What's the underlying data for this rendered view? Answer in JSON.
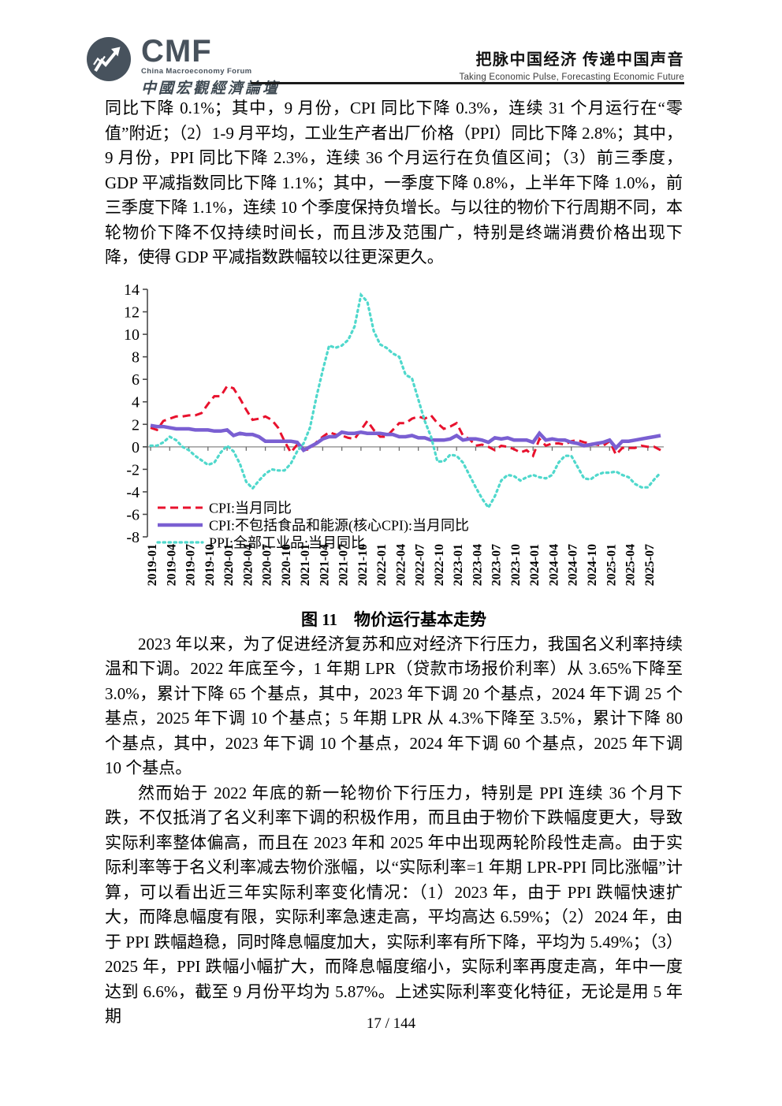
{
  "header": {
    "logo": {
      "abbr": "CMF",
      "full_name": "China Macroeconomy Forum",
      "calligraphy": "中國宏觀經濟論壇"
    },
    "slogan_cn": "把脉中国经济  传递中国声音",
    "slogan_en": "Taking Economic Pulse, Forecasting Economic Future"
  },
  "body": {
    "para1": "同比下降 0.1%；其中，9 月份，CPI 同比下降 0.3%，连续 31 个月运行在“零值”附近；（2）1-9 月平均，工业生产者出厂价格（PPI）同比下降 2.8%；其中，9 月份，PPI 同比下降 2.3%，连续 36 个月运行在负值区间；（3）前三季度，GDP 平减指数同比下降 1.1%；其中，一季度下降 0.8%，上半年下降 1.0%，前三季度下降 1.1%，连续 10 个季度保持负增长。与以往的物价下行周期不同，本轮物价下降不仅持续时间长，而且涉及范围广，特别是终端消费价格出现下降，使得 GDP 平减指数跌幅较以往更深更久。",
    "figure_caption": "图 11　物价运行基本走势",
    "para2": "2023 年以来，为了促进经济复苏和应对经济下行压力，我国名义利率持续温和下调。2022 年底至今，1 年期 LPR（贷款市场报价利率）从 3.65%下降至 3.0%，累计下降 65 个基点，其中，2023 年下调 20 个基点，2024 年下调 25 个基点，2025 年下调 10 个基点；5 年期 LPR 从 4.3%下降至 3.5%，累计下降 80 个基点，其中，2023 年下调 10 个基点，2024 年下调 60 个基点，2025 年下调 10 个基点。",
    "para3": "然而始于 2022 年底的新一轮物价下行压力，特别是 PPI 连续 36 个月下跌，不仅抵消了名义利率下调的积极作用，而且由于物价下跌幅度更大，导致实际利率整体偏高，而且在 2023 年和 2025 年中出现两轮阶段性走高。由于实际利率等于名义利率减去物价涨幅，以“实际利率=1 年期 LPR-PPI 同比涨幅”计算，可以看出近三年实际利率变化情况：（1）2023 年，由于 PPI 跌幅快速扩大，而降息幅度有限，实际利率急速走高，平均高达 6.59%；（2）2024 年，由于 PPI 跌幅趋稳，同时降息幅度加大，实际利率有所下降，平均为 5.49%；（3）2025 年，PPI 跌幅小幅扩大，而降息幅度缩小，实际利率再度走高，年中一度达到 6.6%，截至 9 月份平均为 5.87%。上述实际利率变化特征，无论是用 5 年期"
  },
  "footer": {
    "page_number": "17 / 144"
  },
  "chart_data": {
    "type": "line",
    "title": "图 11　物价运行基本走势",
    "xlabel": "",
    "ylabel": "",
    "ylim": [
      -8,
      14
    ],
    "y_tick_step": 2,
    "grid": false,
    "legend_position": "inside-bottom-left",
    "x_months_start": "2019-01",
    "x_months_end": "2025-09",
    "x_tick_every": 3,
    "x_tick_labels": [
      "2019-01",
      "2019-04",
      "2019-07",
      "2019-10",
      "2020-01",
      "2020-04",
      "2020-07",
      "2020-10",
      "2021-01",
      "2021-04",
      "2021-07",
      "2021-10",
      "2022-01",
      "2022-04",
      "2022-07",
      "2022-10",
      "2023-01",
      "2023-04",
      "2023-07",
      "2023-10",
      "2024-01",
      "2024-04",
      "2024-07",
      "2024-10",
      "2025-01",
      "2025-04",
      "2025-07"
    ],
    "series": [
      {
        "name": "CPI:当月同比",
        "style": "dashed",
        "color": "#e8112d",
        "values": [
          1.7,
          1.5,
          2.3,
          2.5,
          2.7,
          2.7,
          2.8,
          2.8,
          3.0,
          3.8,
          4.5,
          4.5,
          5.4,
          5.2,
          4.3,
          3.3,
          2.4,
          2.5,
          2.7,
          2.4,
          1.7,
          0.5,
          -0.5,
          0.2,
          -0.3,
          -0.2,
          0.4,
          0.9,
          1.3,
          1.1,
          1.0,
          0.8,
          0.7,
          1.5,
          2.3,
          1.5,
          0.9,
          0.9,
          1.5,
          2.1,
          2.1,
          2.5,
          2.7,
          2.5,
          2.8,
          2.1,
          1.6,
          1.8,
          2.1,
          1.0,
          0.7,
          0.1,
          0.2,
          0.0,
          -0.3,
          0.1,
          0.0,
          -0.2,
          -0.5,
          -0.3,
          -0.8,
          0.7,
          0.1,
          0.3,
          0.3,
          0.2,
          0.5,
          0.6,
          0.4,
          0.3,
          0.2,
          0.1,
          0.5,
          -0.7,
          -0.1,
          -0.1,
          -0.1,
          0.1,
          0.0,
          0.0,
          -0.3
        ]
      },
      {
        "name": "CPI:不包括食品和能源(核心CPI):当月同比",
        "style": "solid",
        "color": "#7a5fd2",
        "values": [
          1.9,
          1.8,
          1.8,
          1.7,
          1.6,
          1.6,
          1.6,
          1.5,
          1.5,
          1.5,
          1.4,
          1.4,
          1.5,
          1.0,
          1.2,
          1.1,
          1.1,
          0.9,
          0.5,
          0.5,
          0.5,
          0.5,
          0.5,
          0.4,
          -0.3,
          0.0,
          0.3,
          0.7,
          0.9,
          0.9,
          1.3,
          1.2,
          1.2,
          1.3,
          1.2,
          1.2,
          1.2,
          1.1,
          1.1,
          0.9,
          0.9,
          1.0,
          0.8,
          0.8,
          0.6,
          0.6,
          0.6,
          0.7,
          1.0,
          0.6,
          0.7,
          0.7,
          0.6,
          0.4,
          0.8,
          0.7,
          0.8,
          0.6,
          0.6,
          0.6,
          0.4,
          1.2,
          0.6,
          0.7,
          0.6,
          0.6,
          0.4,
          0.3,
          0.1,
          0.2,
          0.3,
          0.4,
          0.6,
          -0.1,
          0.5,
          0.5,
          0.6,
          0.7,
          0.8,
          0.9,
          1.0
        ]
      },
      {
        "name": "PPI:全部工业品:当月同比",
        "style": "dotted",
        "color": "#4fd8cc",
        "values": [
          0.1,
          0.1,
          0.4,
          0.9,
          0.6,
          0.0,
          -0.3,
          -0.8,
          -1.2,
          -1.6,
          -1.4,
          -0.5,
          0.1,
          -0.4,
          -1.5,
          -3.1,
          -3.7,
          -3.0,
          -2.4,
          -2.0,
          -2.1,
          -2.1,
          -1.5,
          -0.4,
          0.3,
          1.7,
          4.4,
          6.8,
          9.0,
          8.8,
          9.0,
          9.5,
          10.7,
          13.5,
          12.9,
          10.3,
          9.1,
          8.8,
          8.3,
          8.0,
          6.4,
          6.1,
          4.2,
          2.3,
          0.9,
          -1.3,
          -1.3,
          -0.7,
          -0.8,
          -1.4,
          -2.5,
          -3.6,
          -4.6,
          -5.4,
          -4.4,
          -3.0,
          -2.5,
          -2.6,
          -3.0,
          -2.7,
          -2.5,
          -2.7,
          -2.8,
          -2.5,
          -1.4,
          -0.8,
          -0.8,
          -1.8,
          -2.8,
          -2.9,
          -2.5,
          -2.3,
          -2.3,
          -2.2,
          -2.5,
          -2.7,
          -3.3,
          -3.6,
          -3.6,
          -2.9,
          -2.3
        ]
      }
    ]
  }
}
